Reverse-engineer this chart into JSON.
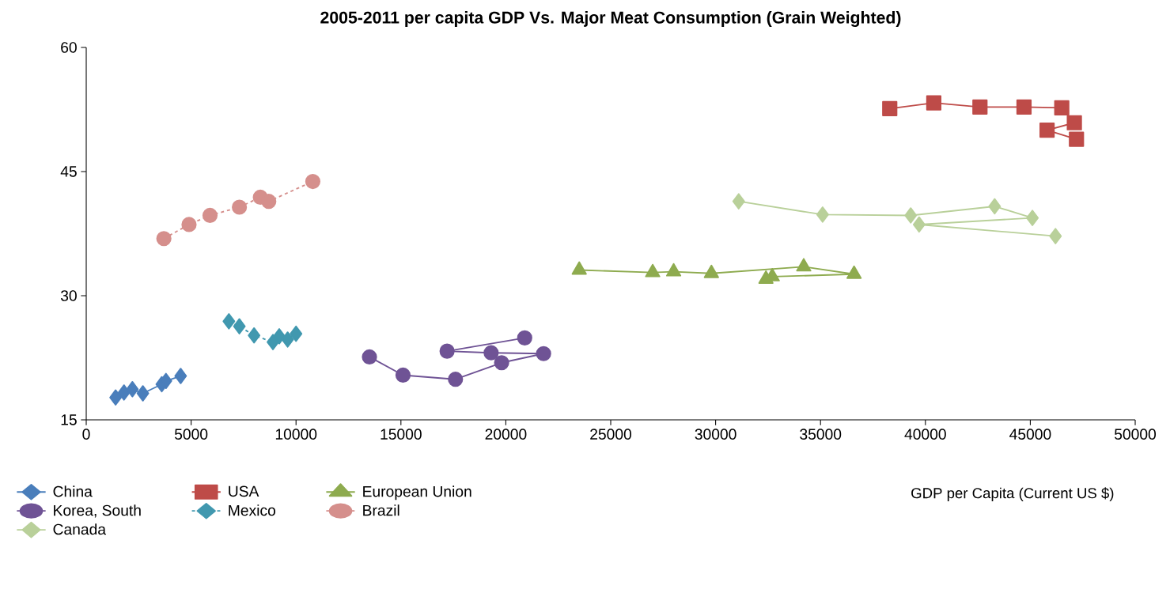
{
  "chart_data": {
    "type": "line",
    "title": "2005-2011 per capita GDP Vs. Major Meat Consumption (Grain Weighted)",
    "xlabel": "GDP per Capita (Current US $)",
    "xlim": [
      0,
      50000
    ],
    "ylim": [
      15,
      60
    ],
    "xticks": [
      0,
      5000,
      10000,
      15000,
      20000,
      25000,
      30000,
      35000,
      40000,
      45000,
      50000
    ],
    "yticks": [
      15,
      30,
      45,
      60
    ],
    "legend": "bottom",
    "grid": false,
    "series": [
      {
        "name": "China",
        "color": "#4a7ebb",
        "marker": "diamond",
        "line_style": "solid",
        "x": [
          1400,
          1800,
          2200,
          2700,
          3600,
          3800,
          4500
        ],
        "values": [
          17.7,
          18.3,
          18.7,
          18.2,
          19.3,
          19.7,
          20.3
        ]
      },
      {
        "name": "USA",
        "color": "#be4b48",
        "marker": "square",
        "line_style": "solid",
        "x": [
          38300,
          40400,
          42600,
          44700,
          46500,
          47100,
          45800,
          47200
        ],
        "values": [
          52.6,
          53.3,
          52.8,
          52.8,
          52.7,
          50.9,
          50.0,
          48.9
        ]
      },
      {
        "name": "European Union",
        "color": "#8eab4f",
        "marker": "triangle",
        "line_style": "solid",
        "x": [
          23500,
          27000,
          28000,
          29800,
          34200,
          36600,
          32700,
          32400
        ],
        "values": [
          33.1,
          32.8,
          32.9,
          32.7,
          33.5,
          32.6,
          32.3,
          32.0
        ]
      },
      {
        "name": "Korea, South",
        "color": "#6f5395",
        "marker": "circle",
        "line_style": "solid",
        "x": [
          13500,
          15100,
          17600,
          19800,
          21800,
          19300,
          17200,
          20900
        ],
        "values": [
          22.6,
          20.4,
          19.9,
          21.9,
          23.0,
          23.1,
          23.3,
          24.9
        ]
      },
      {
        "name": "Mexico",
        "color": "#4198af",
        "marker": "diamond",
        "line_style": "dashed",
        "x": [
          6800,
          7300,
          8000,
          8900,
          9200,
          9600,
          10000
        ],
        "values": [
          26.9,
          26.3,
          25.2,
          24.4,
          25.1,
          24.7,
          25.4
        ]
      },
      {
        "name": "Brazil",
        "color": "#d58f8c",
        "marker": "circle",
        "line_style": "dashed",
        "x": [
          3700,
          4900,
          5900,
          7300,
          8300,
          8700,
          10800
        ],
        "values": [
          36.9,
          38.6,
          39.7,
          40.7,
          41.9,
          41.4,
          43.8
        ]
      },
      {
        "name": "Canada",
        "color": "#b9d09a",
        "marker": "diamond",
        "line_style": "solid",
        "x": [
          31100,
          35100,
          39300,
          43300,
          45100,
          39700,
          46200
        ],
        "values": [
          41.4,
          39.8,
          39.7,
          40.8,
          39.4,
          38.6,
          37.2
        ]
      }
    ]
  }
}
